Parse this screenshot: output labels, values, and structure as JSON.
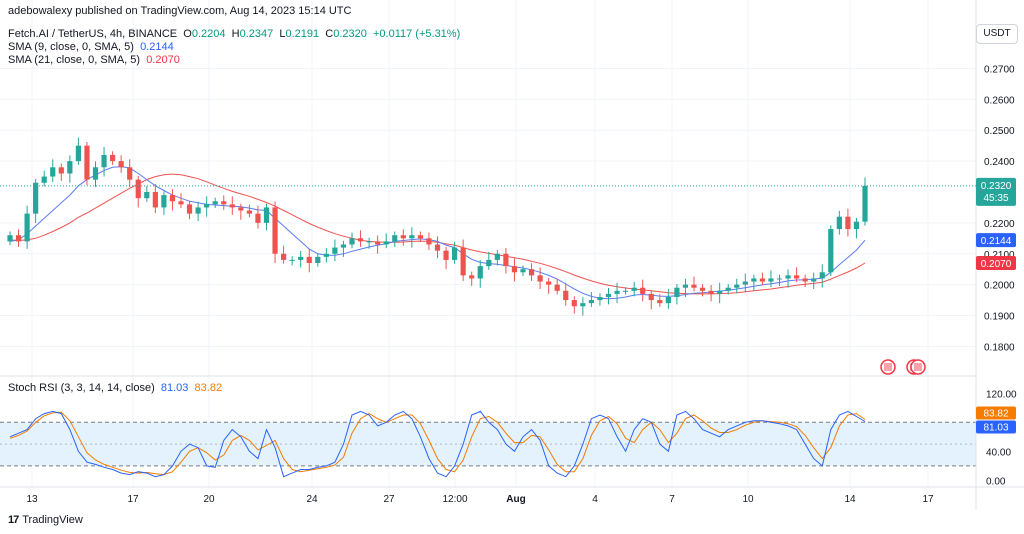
{
  "header": {
    "published": "adebowalexy published on TradingView.com, Aug 14, 2023 15:14 UTC",
    "symbol": "Fetch.AI / TetherUS, 4h, BINANCE",
    "o_label": "O",
    "o_value": "0.2204",
    "h_label": "H",
    "h_value": "0.2347",
    "l_label": "L",
    "l_value": "0.2191",
    "c_label": "C",
    "c_value": "0.2320",
    "change": "+0.0117 (+5.31%)",
    "sma9_label": "SMA (9, close, 0, SMA, 5)",
    "sma9_value": "0.2144",
    "sma21_label": "SMA (21, close, 0, SMA, 5)",
    "sma21_value": "0.2070",
    "rsi_label": "Stoch RSI (3, 3, 14, 14, close)",
    "rsi_k": "81.03",
    "rsi_d": "83.82",
    "currency_button": "USDT"
  },
  "footer": {
    "brand": "TradingView",
    "logo_icon": "tradingview-logo-icon"
  },
  "colors": {
    "up": "#26a69a",
    "down": "#ef5350",
    "sma9": "#5b7cf7",
    "sma21": "#ef5350",
    "rsi_k": "#2962ff",
    "rsi_d": "#f57c00",
    "band": "#e3f2fd",
    "price_line": "#26a69a"
  },
  "events": {
    "icon": "us-flag-event-icon"
  },
  "chart_data": [
    {
      "type": "candlestick",
      "title": "Fetch.AI / TetherUS, 4h, BINANCE",
      "ylim": [
        0.173,
        0.287
      ],
      "y_ticks": [
        "0.2700",
        "0.2600",
        "0.2500",
        "0.2400",
        "0.2200",
        "0.2100",
        "0.2000",
        "0.1900",
        "0.1800"
      ],
      "x_ticks": [
        "13",
        "17",
        "20",
        "24",
        "27",
        "12:00",
        "Aug",
        "4",
        "7",
        "10",
        "14",
        "17"
      ],
      "last_price_label": "0.2320",
      "countdown_label": "45:35",
      "sma9_label": "0.2144",
      "sma21_label": "0.2070",
      "grid": true,
      "close": [
        0.216,
        0.214,
        0.223,
        0.233,
        0.235,
        0.238,
        0.236,
        0.24,
        0.245,
        0.234,
        0.238,
        0.242,
        0.24,
        0.238,
        0.234,
        0.228,
        0.23,
        0.225,
        0.229,
        0.227,
        0.226,
        0.223,
        0.225,
        0.226,
        0.227,
        0.226,
        0.225,
        0.224,
        0.223,
        0.22,
        0.225,
        0.21,
        0.208,
        0.208,
        0.209,
        0.207,
        0.209,
        0.21,
        0.212,
        0.213,
        0.215,
        0.214,
        0.214,
        0.213,
        0.214,
        0.216,
        0.215,
        0.216,
        0.215,
        0.213,
        0.211,
        0.208,
        0.212,
        0.203,
        0.202,
        0.206,
        0.208,
        0.21,
        0.206,
        0.204,
        0.205,
        0.203,
        0.201,
        0.2,
        0.198,
        0.195,
        0.193,
        0.194,
        0.195,
        0.196,
        0.197,
        0.198,
        0.198,
        0.199,
        0.197,
        0.195,
        0.194,
        0.196,
        0.199,
        0.2,
        0.199,
        0.198,
        0.197,
        0.198,
        0.199,
        0.2,
        0.201,
        0.202,
        0.201,
        0.202,
        0.202,
        0.203,
        0.202,
        0.201,
        0.202,
        0.204,
        0.218,
        0.222,
        0.218,
        0.2204,
        0.232
      ],
      "series": [
        {
          "name": "SMA (9, close, 0, SMA, 5)",
          "values": [
            0.214,
            0.2145,
            0.2165,
            0.219,
            0.2215,
            0.224,
            0.2265,
            0.229,
            0.232,
            0.234,
            0.2355,
            0.237,
            0.238,
            0.2382,
            0.2378,
            0.236,
            0.234,
            0.232,
            0.2305,
            0.229,
            0.228,
            0.227,
            0.2265,
            0.226,
            0.2258,
            0.2256,
            0.2254,
            0.2252,
            0.2248,
            0.2242,
            0.224,
            0.2215,
            0.219,
            0.2165,
            0.214,
            0.2115,
            0.21,
            0.2095,
            0.2095,
            0.21,
            0.2108,
            0.2115,
            0.2122,
            0.2128,
            0.2132,
            0.214,
            0.2143,
            0.2146,
            0.2148,
            0.2146,
            0.214,
            0.2128,
            0.212,
            0.21,
            0.2082,
            0.2072,
            0.2068,
            0.2066,
            0.2062,
            0.2058,
            0.2054,
            0.2048,
            0.204,
            0.203,
            0.2018,
            0.2002,
            0.1986,
            0.1972,
            0.1962,
            0.1956,
            0.1954,
            0.1956,
            0.196,
            0.1966,
            0.1968,
            0.1966,
            0.1963,
            0.1962,
            0.1964,
            0.1968,
            0.1972,
            0.1974,
            0.1976,
            0.1979,
            0.1982,
            0.1986,
            0.199,
            0.1995,
            0.1999,
            0.2003,
            0.2007,
            0.2012,
            0.2015,
            0.2016,
            0.2018,
            0.2021,
            0.204,
            0.2065,
            0.2088,
            0.2112,
            0.2144
          ]
        },
        {
          "name": "SMA (21, close, 0, SMA, 5)",
          "values": [
            0.2145,
            0.2143,
            0.2145,
            0.215,
            0.216,
            0.2172,
            0.2185,
            0.22,
            0.2218,
            0.2232,
            0.2248,
            0.2264,
            0.228,
            0.2296,
            0.2312,
            0.2326,
            0.234,
            0.235,
            0.2356,
            0.2358,
            0.2356,
            0.235,
            0.2343,
            0.2333,
            0.2322,
            0.2312,
            0.2302,
            0.2294,
            0.2286,
            0.2276,
            0.2266,
            0.2254,
            0.224,
            0.2226,
            0.2212,
            0.2198,
            0.2186,
            0.2175,
            0.2165,
            0.2157,
            0.215,
            0.2144,
            0.214,
            0.2138,
            0.2137,
            0.2137,
            0.2138,
            0.214,
            0.2141,
            0.214,
            0.2137,
            0.2132,
            0.2128,
            0.212,
            0.2112,
            0.2106,
            0.2101,
            0.2097,
            0.2092,
            0.2087,
            0.2082,
            0.2076,
            0.2069,
            0.2061,
            0.2052,
            0.2042,
            0.2031,
            0.2021,
            0.2012,
            0.2004,
            0.1998,
            0.1993,
            0.1989,
            0.1986,
            0.1983,
            0.198,
            0.1977,
            0.1974,
            0.1972,
            0.1971,
            0.197,
            0.197,
            0.197,
            0.1971,
            0.1972,
            0.1974,
            0.1977,
            0.198,
            0.1983,
            0.1986,
            0.199,
            0.1994,
            0.1998,
            0.2001,
            0.2004,
            0.2008,
            0.2018,
            0.203,
            0.2041,
            0.2054,
            0.207
          ]
        }
      ]
    },
    {
      "type": "line",
      "title": "Stoch RSI (3, 3, 14, 14, close)",
      "ylim": [
        -5,
        130
      ],
      "y_ticks": [
        "120.00",
        "40.00",
        "0.00"
      ],
      "band": [
        20,
        80
      ],
      "mid_line": 50,
      "k_label": "81.03",
      "d_label": "83.82",
      "series": [
        {
          "name": "K",
          "values": [
            60,
            65,
            70,
            85,
            92,
            95,
            92,
            70,
            40,
            25,
            22,
            18,
            15,
            10,
            8,
            12,
            10,
            5,
            8,
            20,
            40,
            50,
            45,
            20,
            18,
            55,
            70,
            60,
            40,
            30,
            70,
            45,
            5,
            10,
            15,
            15,
            18,
            20,
            25,
            50,
            90,
            95,
            90,
            75,
            80,
            90,
            95,
            85,
            60,
            30,
            10,
            5,
            20,
            50,
            90,
            95,
            80,
            70,
            50,
            40,
            60,
            70,
            55,
            20,
            10,
            5,
            20,
            50,
            85,
            90,
            85,
            60,
            40,
            70,
            85,
            80,
            50,
            40,
            90,
            95,
            85,
            70,
            65,
            60,
            70,
            75,
            80,
            82,
            82,
            80,
            78,
            75,
            70,
            50,
            30,
            20,
            70,
            90,
            95,
            88,
            81.03
          ]
        },
        {
          "name": "D",
          "values": [
            58,
            62,
            68,
            80,
            89,
            93,
            94,
            82,
            60,
            38,
            28,
            22,
            18,
            14,
            11,
            10,
            11,
            9,
            8,
            12,
            25,
            40,
            45,
            38,
            28,
            35,
            55,
            62,
            55,
            42,
            48,
            55,
            30,
            15,
            12,
            14,
            16,
            18,
            21,
            32,
            65,
            85,
            92,
            85,
            80,
            85,
            90,
            90,
            78,
            55,
            30,
            15,
            12,
            28,
            60,
            85,
            88,
            80,
            65,
            52,
            52,
            62,
            60,
            42,
            22,
            12,
            12,
            30,
            62,
            82,
            88,
            78,
            58,
            52,
            70,
            80,
            70,
            52,
            65,
            85,
            90,
            82,
            72,
            66,
            66,
            70,
            76,
            80,
            82,
            81,
            80,
            78,
            74,
            62,
            45,
            30,
            45,
            75,
            90,
            92,
            83.82
          ]
        }
      ]
    }
  ]
}
